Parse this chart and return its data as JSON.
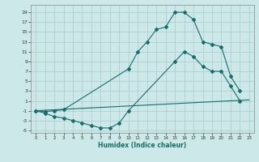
{
  "xlabel": "Humidex (Indice chaleur)",
  "bg_color": "#cce8e8",
  "grid_color": "#aacccc",
  "line_color": "#1a6b6b",
  "yticks": [
    -5,
    -3,
    -1,
    1,
    3,
    5,
    7,
    9,
    11,
    13,
    15,
    17,
    19
  ],
  "xticks": [
    0,
    1,
    2,
    3,
    4,
    5,
    6,
    7,
    8,
    9,
    10,
    11,
    12,
    13,
    14,
    15,
    16,
    17,
    18,
    19,
    20,
    21,
    22,
    23
  ],
  "ylim": [
    -5.5,
    20.5
  ],
  "xlim": [
    -0.5,
    23.5
  ],
  "curve1_x": [
    0,
    1,
    2,
    3,
    10,
    11,
    12,
    13,
    14,
    15,
    16,
    17,
    18,
    19,
    20,
    21,
    22
  ],
  "curve1_y": [
    -1,
    -1.2,
    -1,
    -0.8,
    7.5,
    11,
    13,
    15.5,
    16,
    19,
    19,
    17.5,
    13,
    12.5,
    12,
    6,
    3
  ],
  "curve2_x": [
    0,
    23
  ],
  "curve2_y": [
    -1,
    1.2
  ],
  "curve3_x": [
    0,
    1,
    2,
    3,
    4,
    5,
    6,
    7,
    8,
    9,
    10,
    15,
    16,
    17,
    18,
    19,
    20,
    21,
    22
  ],
  "curve3_y": [
    -1,
    -1.5,
    -2.2,
    -2.5,
    -3,
    -3.5,
    -4,
    -4.5,
    -4.5,
    -3.5,
    -1,
    9,
    11,
    10,
    8,
    7,
    7,
    4,
    1
  ]
}
